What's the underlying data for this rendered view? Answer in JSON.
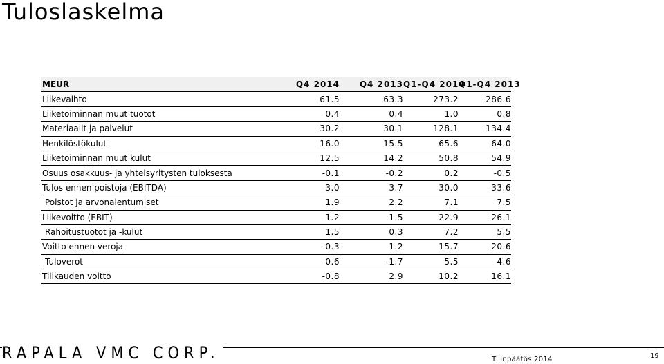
{
  "page": {
    "title": "Tuloslaskelma",
    "footer_text": "Tilinpäätös 2014",
    "page_number": "19",
    "logo_text": "RAPALA VMC CORP."
  },
  "table": {
    "headers": [
      "MEUR",
      "Q4 2014",
      "Q4 2013",
      "Q1-Q4 2014",
      "Q1-Q4 2013"
    ],
    "rows": [
      {
        "label": "Liikevaihto",
        "values": [
          "61.5",
          "63.3",
          "273.2",
          "286.6"
        ]
      },
      {
        "label": "Liiketoiminnan muut tuotot",
        "values": [
          "0.4",
          "0.4",
          "1.0",
          "0.8"
        ]
      },
      {
        "label": "Materiaalit ja palvelut",
        "values": [
          "30.2",
          "30.1",
          "128.1",
          "134.4"
        ]
      },
      {
        "label": "Henkilöstökulut",
        "values": [
          "16.0",
          "15.5",
          "65.6",
          "64.0"
        ]
      },
      {
        "label": "Liiketoiminnan muut kulut",
        "values": [
          "12.5",
          "14.2",
          "50.8",
          "54.9"
        ]
      },
      {
        "label": "Osuus osakkuus- ja yhteisyritysten tuloksesta",
        "values": [
          "-0.1",
          "-0.2",
          "0.2",
          "-0.5"
        ]
      },
      {
        "label": "Tulos ennen poistoja (EBITDA)",
        "values": [
          "3.0",
          "3.7",
          "30.0",
          "33.6"
        ]
      },
      {
        "label": "Poistot ja arvonalentumiset",
        "values": [
          "1.9",
          "2.2",
          "7.1",
          "7.5"
        ]
      },
      {
        "label": "Liikevoitto (EBIT)",
        "values": [
          "1.2",
          "1.5",
          "22.9",
          "26.1"
        ]
      },
      {
        "label": "Rahoitustuotot ja -kulut",
        "values": [
          "1.5",
          "0.3",
          "7.2",
          "5.5"
        ]
      },
      {
        "label": "Voitto ennen veroja",
        "values": [
          "-0.3",
          "1.2",
          "15.7",
          "20.6"
        ]
      },
      {
        "label": "Tuloverot",
        "values": [
          "0.6",
          "-1.7",
          "5.5",
          "4.6"
        ]
      },
      {
        "label": "Tilikauden voitto",
        "values": [
          "-0.8",
          "2.9",
          "10.2",
          "16.1"
        ]
      }
    ]
  }
}
